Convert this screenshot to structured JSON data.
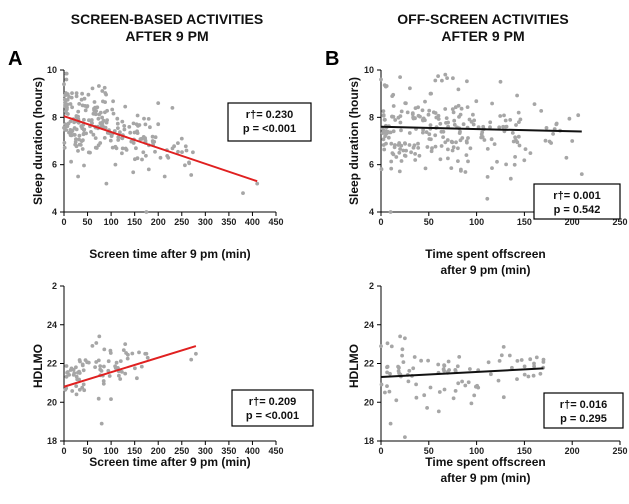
{
  "columns": [
    {
      "title_line1": "SCREEN-BASED ACTIVITIES",
      "title_line2": "AFTER 9 PM"
    },
    {
      "title_line1": "OFF-SCREEN ACTIVITIES",
      "title_line2": "AFTER 9 PM"
    }
  ],
  "panel_letters": [
    "A",
    "B"
  ],
  "colors": {
    "points": "#a6a6a6",
    "red_line": "#e02020",
    "black_line": "#111111"
  },
  "chart_data": [
    {
      "id": "sleep-screen",
      "type": "scatter",
      "xlabel": [
        "Screen time after 9 pm (min)"
      ],
      "ylabel": "Sleep duration (hours)",
      "xlim": [
        0,
        450
      ],
      "xticks": [
        0,
        50,
        100,
        150,
        200,
        250,
        300,
        350,
        400,
        450
      ],
      "ylim": [
        4,
        10
      ],
      "yticks": [
        4,
        6,
        8,
        10
      ],
      "fit": {
        "x": [
          0,
          410
        ],
        "y": [
          8.05,
          5.3
        ],
        "color": "red"
      },
      "stats": {
        "r": "r†= 0.230",
        "p": "p = <0.001"
      },
      "seed": 11,
      "points_fixed": [
        [
          0,
          9.4
        ],
        [
          5,
          9.6
        ],
        [
          175,
          4.0
        ],
        [
          380,
          4.8
        ],
        [
          410,
          5.2
        ],
        [
          200,
          8.6
        ],
        [
          230,
          8.4
        ],
        [
          260,
          6.6
        ],
        [
          250,
          7.1
        ],
        [
          30,
          5.5
        ],
        [
          90,
          5.2
        ],
        [
          180,
          5.8
        ]
      ],
      "cloud": [
        {
          "n": 150,
          "x": [
            0,
            110
          ],
          "mean": [
            8.1,
            7.5
          ],
          "sd": 0.75
        },
        {
          "n": 55,
          "x": [
            110,
            190
          ],
          "mean": [
            7.4,
            6.9
          ],
          "sd": 0.65
        },
        {
          "n": 20,
          "x": [
            190,
            280
          ],
          "mean": [
            6.9,
            6.1
          ],
          "sd": 0.55
        }
      ]
    },
    {
      "id": "sleep-offscreen",
      "type": "scatter",
      "xlabel": [
        "Time spent offscreen",
        "after 9 pm (min)"
      ],
      "ylabel": "Sleep duration (hours)",
      "xlim": [
        0,
        250
      ],
      "xticks": [
        0,
        50,
        100,
        150,
        200,
        250
      ],
      "ylim": [
        4,
        10
      ],
      "yticks": [
        4,
        6,
        8,
        10
      ],
      "fit": {
        "x": [
          0,
          210
        ],
        "y": [
          7.6,
          7.4
        ],
        "color": "black"
      },
      "stats": {
        "r": "r†= 0.001",
        "p": "p = 0.542"
      },
      "seed": 23,
      "points_fixed": [
        [
          5,
          9.3
        ],
        [
          20,
          9.7
        ],
        [
          10,
          4.0
        ],
        [
          125,
          9.5
        ],
        [
          210,
          5.6
        ],
        [
          200,
          7.0
        ],
        [
          180,
          7.3
        ],
        [
          0,
          9.6
        ]
      ],
      "cloud": [
        {
          "n": 170,
          "x": [
            0,
            90
          ],
          "mean": [
            7.6,
            7.6
          ],
          "sd": 0.85
        },
        {
          "n": 55,
          "x": [
            90,
            150
          ],
          "mean": [
            7.5,
            7.4
          ],
          "sd": 0.8
        },
        {
          "n": 15,
          "x": [
            150,
            210
          ],
          "mean": [
            7.4,
            7.3
          ],
          "sd": 0.7
        }
      ]
    },
    {
      "id": "dlmo-screen",
      "type": "scatter",
      "xlabel": [
        "Screen time after 9 pm (min)"
      ],
      "ylabel": "HDLMO",
      "xlim": [
        0,
        450
      ],
      "xticks": [
        0,
        50,
        100,
        150,
        200,
        250,
        300,
        350,
        400,
        450
      ],
      "ylim": [
        18,
        24
      ],
      "yticks": [
        18,
        20,
        22,
        24,
        2
      ],
      "ytick_labels": [
        "18",
        "20",
        "22",
        "24",
        "2"
      ],
      "ylim_display": [
        18,
        26
      ],
      "fit": {
        "x": [
          0,
          280
        ],
        "y": [
          20.8,
          22.9
        ],
        "color": "red"
      },
      "stats": {
        "r": "r†= 0.209",
        "p": "p = <0.001"
      },
      "seed": 37,
      "points_fixed": [
        [
          80,
          18.9
        ],
        [
          270,
          22.2
        ],
        [
          280,
          22.5
        ],
        [
          75,
          23.4
        ],
        [
          130,
          23.0
        ],
        [
          175,
          22.5
        ]
      ],
      "cloud": [
        {
          "n": 55,
          "x": [
            0,
            100
          ],
          "mean": [
            21.0,
            21.7
          ],
          "sd": 0.65
        },
        {
          "n": 22,
          "x": [
            100,
            180
          ],
          "mean": [
            21.7,
            22.1
          ],
          "sd": 0.55
        }
      ]
    },
    {
      "id": "dlmo-offscreen",
      "type": "scatter",
      "xlabel": [
        "Time spent offscreen",
        "after 9 pm (min)"
      ],
      "ylabel": "HDLMO",
      "xlim": [
        0,
        250
      ],
      "xticks": [
        0,
        50,
        100,
        150,
        200,
        250
      ],
      "ylim": [
        18,
        24
      ],
      "yticks": [
        18,
        20,
        22,
        24,
        2
      ],
      "ytick_labels": [
        "18",
        "20",
        "22",
        "24",
        "2"
      ],
      "ylim_display": [
        18,
        26
      ],
      "fit": {
        "x": [
          0,
          170
        ],
        "y": [
          21.3,
          21.75
        ],
        "color": "black"
      },
      "stats": {
        "r": "r†= 0.016",
        "p": "p = 0.295"
      },
      "seed": 53,
      "points_fixed": [
        [
          20,
          23.4
        ],
        [
          25,
          23.3
        ],
        [
          10,
          18.9
        ],
        [
          25,
          18.2
        ],
        [
          170,
          22.2
        ],
        [
          160,
          22.0
        ],
        [
          0,
          22.9
        ]
      ],
      "cloud": [
        {
          "n": 60,
          "x": [
            0,
            100
          ],
          "mean": [
            21.4,
            21.6
          ],
          "sd": 0.75
        },
        {
          "n": 25,
          "x": [
            100,
            170
          ],
          "mean": [
            21.6,
            21.7
          ],
          "sd": 0.6
        }
      ]
    }
  ]
}
